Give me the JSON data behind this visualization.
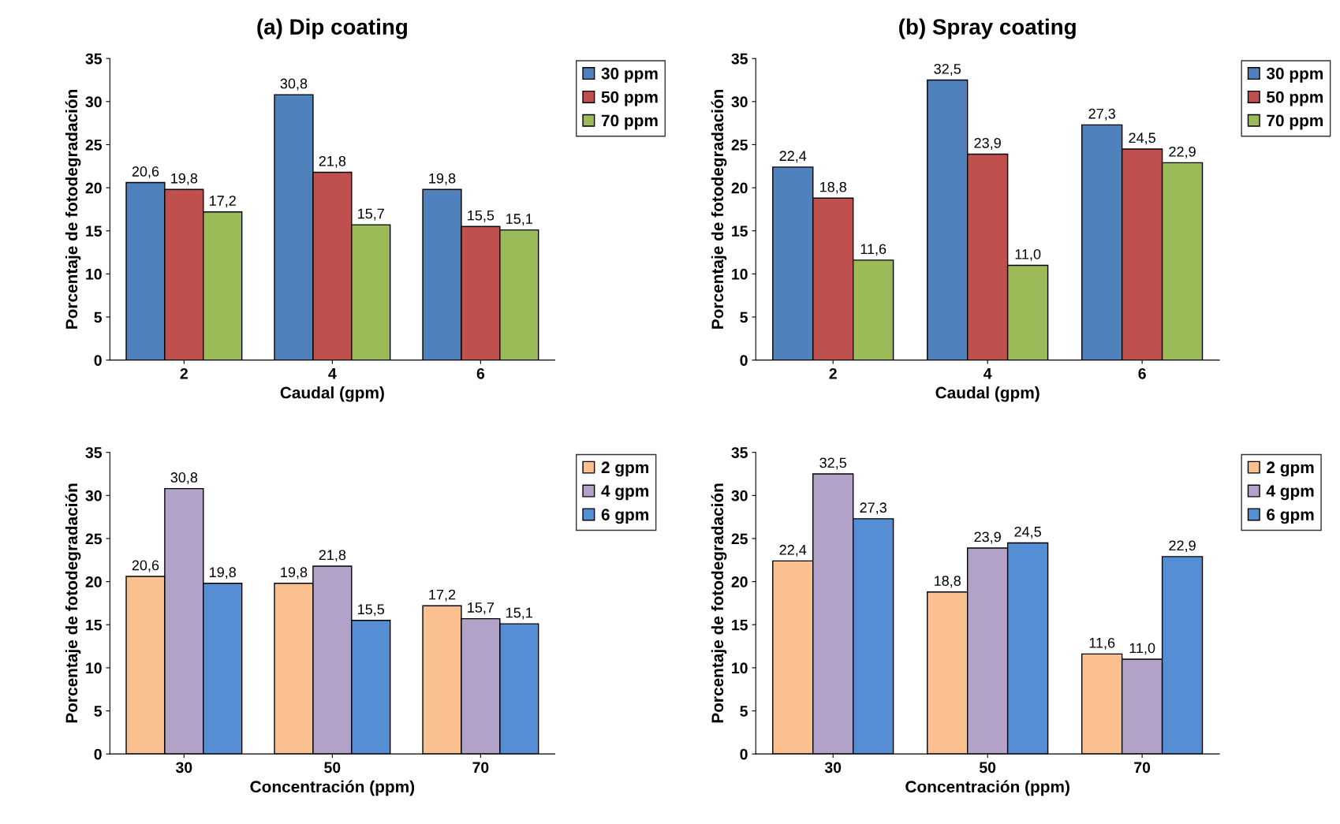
{
  "chart_data": [
    {
      "type": "bar",
      "title": "(a) Dip coating",
      "xlabel": "Caudal (gpm)",
      "ylabel": "Porcentaje de fotodegradación",
      "categories": [
        "2",
        "4",
        "6"
      ],
      "ylim": [
        0,
        35
      ],
      "yticks": [
        0,
        5,
        10,
        15,
        20,
        25,
        30,
        35
      ],
      "legend": "top right",
      "series": [
        {
          "name": "30 ppm",
          "color": "#4f81bd",
          "values": [
            20.6,
            30.8,
            19.8
          ],
          "value_labels": [
            "20,6",
            "30,8",
            "19,8"
          ]
        },
        {
          "name": "50 ppm",
          "color": "#c0504d",
          "values": [
            19.8,
            21.8,
            15.5
          ],
          "value_labels": [
            "19,8",
            "21,8",
            "15,5"
          ]
        },
        {
          "name": "70 ppm",
          "color": "#9bbb59",
          "values": [
            17.2,
            15.7,
            15.1
          ],
          "value_labels": [
            "17,2",
            "15,7",
            "15,1"
          ]
        }
      ]
    },
    {
      "type": "bar",
      "title": "(b) Spray coating",
      "xlabel": "Caudal (gpm)",
      "ylabel": "Porcentaje de fotodegradación",
      "categories": [
        "2",
        "4",
        "6"
      ],
      "ylim": [
        0,
        35
      ],
      "yticks": [
        0,
        5,
        10,
        15,
        20,
        25,
        30,
        35
      ],
      "legend": "top right",
      "series": [
        {
          "name": "30 ppm",
          "color": "#4f81bd",
          "values": [
            22.4,
            32.5,
            27.3
          ],
          "value_labels": [
            "22,4",
            "32,5",
            "27,3"
          ]
        },
        {
          "name": "50 ppm",
          "color": "#c0504d",
          "values": [
            18.8,
            23.9,
            24.5
          ],
          "value_labels": [
            "18,8",
            "23,9",
            "24,5"
          ]
        },
        {
          "name": "70 ppm",
          "color": "#9bbb59",
          "values": [
            11.6,
            11.0,
            22.9
          ],
          "value_labels": [
            "11,6",
            "11,0",
            "22,9"
          ]
        }
      ]
    },
    {
      "type": "bar",
      "xlabel": "Concentración (ppm)",
      "ylabel": "Porcentaje de fotodegradación",
      "categories": [
        "30",
        "50",
        "70"
      ],
      "ylim": [
        0,
        35
      ],
      "yticks": [
        0,
        5,
        10,
        15,
        20,
        25,
        30,
        35
      ],
      "legend": "top right",
      "series": [
        {
          "name": "2 gpm",
          "color": "#fac090",
          "values": [
            20.6,
            19.8,
            17.2
          ],
          "value_labels": [
            "20,6",
            "19,8",
            "17,2"
          ]
        },
        {
          "name": "4 gpm",
          "color": "#b2a2c7",
          "values": [
            30.8,
            21.8,
            15.7
          ],
          "value_labels": [
            "30,8",
            "21,8",
            "15,7"
          ]
        },
        {
          "name": "6 gpm",
          "color": "#558ed5",
          "values": [
            19.8,
            15.5,
            15.1
          ],
          "value_labels": [
            "19,8",
            "15,5",
            "15,1"
          ]
        }
      ]
    },
    {
      "type": "bar",
      "xlabel": "Concentración (ppm)",
      "ylabel": "Porcentaje de fotodegradación",
      "categories": [
        "30",
        "50",
        "70"
      ],
      "ylim": [
        0,
        35
      ],
      "yticks": [
        0,
        5,
        10,
        15,
        20,
        25,
        30,
        35
      ],
      "legend": "top right",
      "series": [
        {
          "name": "2 gpm",
          "color": "#fac090",
          "values": [
            22.4,
            18.8,
            11.6
          ],
          "value_labels": [
            "22,4",
            "18,8",
            "11,6"
          ]
        },
        {
          "name": "4 gpm",
          "color": "#b2a2c7",
          "values": [
            32.5,
            23.9,
            11.0
          ],
          "value_labels": [
            "32,5",
            "23,9",
            "11,0"
          ]
        },
        {
          "name": "6 gpm",
          "color": "#558ed5",
          "values": [
            27.3,
            24.5,
            22.9
          ],
          "value_labels": [
            "27,3",
            "24,5",
            "22,9"
          ]
        }
      ]
    }
  ]
}
